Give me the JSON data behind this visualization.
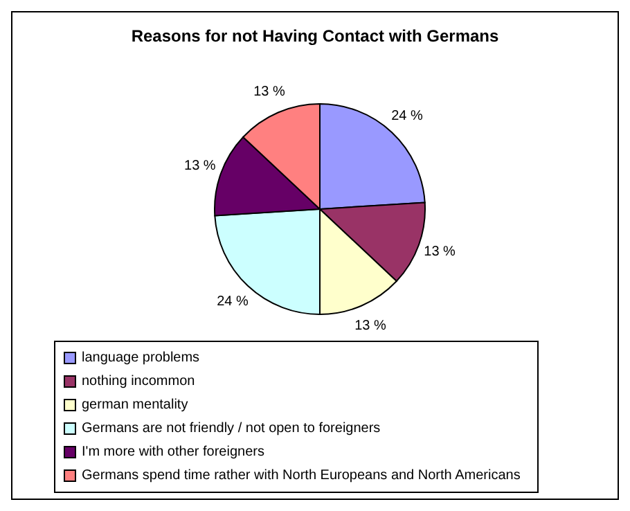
{
  "chart_data": {
    "type": "pie",
    "title": "Reasons for not Having Contact with Germans",
    "categories": [
      "language problems",
      "nothing incommon",
      "german mentality",
      "Germans are not friendly / not open to foreigners",
      "I'm more with other foreigners",
      "Germans spend time rather with North Europeans and North Americans"
    ],
    "values": [
      24,
      13,
      13,
      24,
      13,
      13
    ],
    "colors": [
      "#9999ff",
      "#993366",
      "#ffffcc",
      "#ccffff",
      "#660066",
      "#ff8080"
    ],
    "value_labels": [
      "24 %",
      "13 %",
      "13 %",
      "24 %",
      "13 %",
      "13 %"
    ],
    "legend": "bottom"
  }
}
